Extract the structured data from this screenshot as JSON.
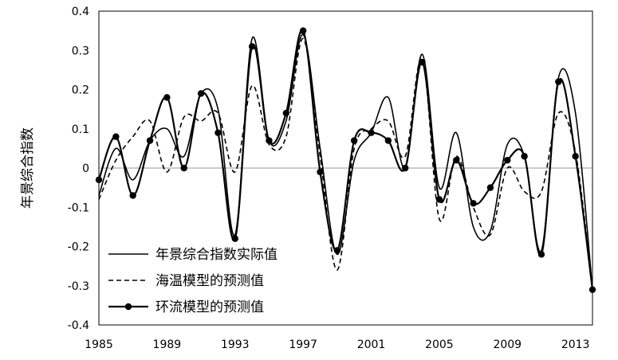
{
  "chart_data": {
    "type": "line",
    "title": "",
    "xlabel": "",
    "ylabel": "年景综合指数",
    "xlim": [
      1985,
      2014
    ],
    "ylim": [
      -0.4,
      0.4
    ],
    "x_ticks": [
      1985,
      1989,
      1993,
      1997,
      2001,
      2005,
      2009,
      2013
    ],
    "y_ticks": [
      0.4,
      0.3,
      0.2,
      0.1,
      0,
      -0.1,
      -0.2,
      -0.3,
      -0.4
    ],
    "y_tick_labels": [
      "0.4",
      "0.3",
      "0.2",
      "0.1",
      "0",
      "-0.1",
      "-0.2",
      "-0.3",
      "-0.4"
    ],
    "grid": false,
    "zero_line": true,
    "legend_position": "bottom-left",
    "series": [
      {
        "name": "年景综合指数实际值",
        "style": "solid",
        "color": "#000000",
        "x": [
          1985,
          1986,
          1987,
          1988,
          1989,
          1990,
          1991,
          1992,
          1993,
          1994,
          1995,
          1996,
          1997,
          1998,
          1999,
          2000,
          2001,
          2002,
          2003,
          2004,
          2005,
          2006,
          2007,
          2008,
          2009,
          2010,
          2011,
          2012,
          2013,
          2014
        ],
        "y": [
          -0.07,
          0.05,
          -0.03,
          0.07,
          0.1,
          0.03,
          0.19,
          0.15,
          -0.17,
          0.33,
          0.07,
          0.12,
          0.34,
          0.05,
          -0.22,
          0.02,
          0.09,
          0.18,
          0.0,
          0.29,
          -0.05,
          0.09,
          -0.15,
          -0.16,
          0.06,
          0.03,
          -0.21,
          0.23,
          0.14,
          -0.31
        ]
      },
      {
        "name": "海温模型的预测值",
        "style": "dashed",
        "color": "#000000",
        "x": [
          1985,
          1986,
          1987,
          1988,
          1989,
          1990,
          1991,
          1992,
          1993,
          1994,
          1995,
          1996,
          1997,
          1998,
          1999,
          2000,
          2001,
          2002,
          2003,
          2004,
          2005,
          2006,
          2007,
          2008,
          2009,
          2010,
          2011,
          2012,
          2013,
          2014
        ],
        "y": [
          -0.08,
          0.02,
          0.08,
          0.12,
          -0.01,
          0.13,
          0.12,
          0.14,
          -0.01,
          0.21,
          0.06,
          0.08,
          0.33,
          0.03,
          -0.26,
          0.05,
          0.1,
          0.12,
          0.03,
          0.28,
          -0.13,
          0.03,
          -0.1,
          -0.17,
          0.0,
          -0.06,
          -0.06,
          0.14,
          0.04,
          -0.31
        ]
      },
      {
        "name": "环流模型的预测值",
        "style": "solid-marker",
        "color": "#000000",
        "x": [
          1985,
          1986,
          1987,
          1988,
          1989,
          1990,
          1991,
          1992,
          1993,
          1994,
          1995,
          1996,
          1997,
          1998,
          1999,
          2000,
          2001,
          2002,
          2003,
          2004,
          2005,
          2006,
          2007,
          2008,
          2009,
          2010,
          2011,
          2012,
          2013,
          2014
        ],
        "y": [
          -0.03,
          0.08,
          -0.07,
          0.07,
          0.18,
          0.0,
          0.19,
          0.09,
          -0.18,
          0.31,
          0.07,
          0.14,
          0.35,
          -0.01,
          -0.21,
          0.07,
          0.09,
          0.07,
          0.0,
          0.27,
          -0.08,
          0.02,
          -0.09,
          -0.05,
          0.02,
          0.03,
          -0.22,
          0.22,
          0.03,
          -0.31
        ]
      }
    ]
  }
}
